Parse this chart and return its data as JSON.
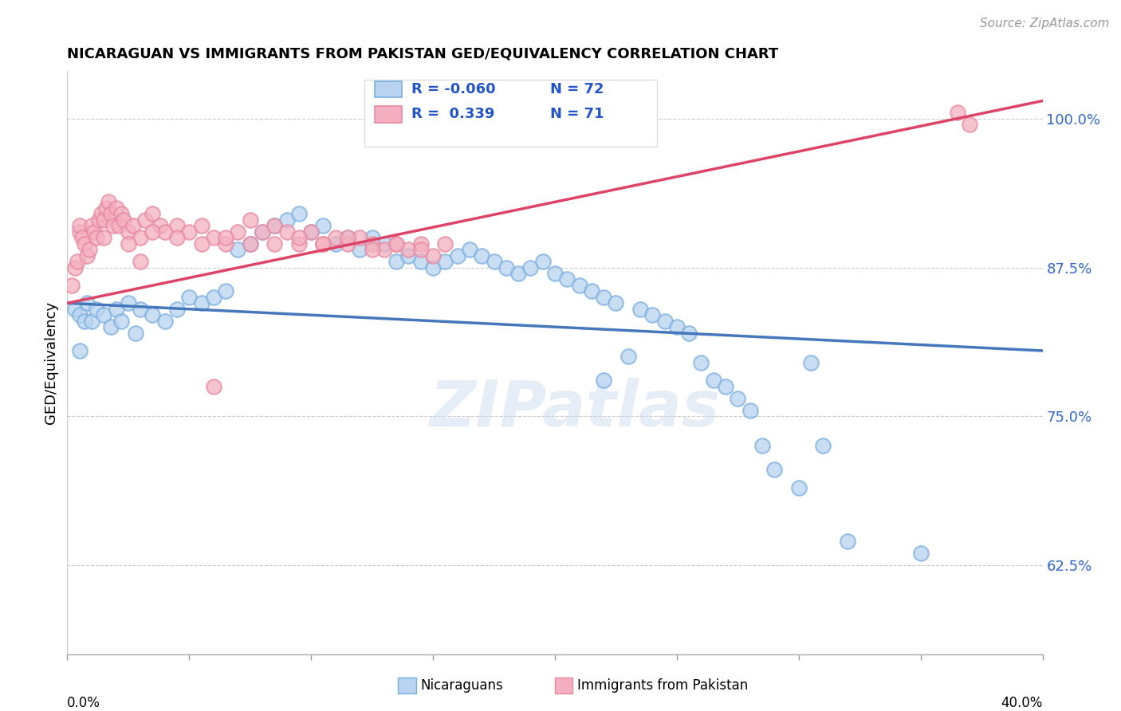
{
  "title": "NICARAGUAN VS IMMIGRANTS FROM PAKISTAN GED/EQUIVALENCY CORRELATION CHART",
  "source": "Source: ZipAtlas.com",
  "ylabel": "GED/Equivalency",
  "yticks": [
    62.5,
    75.0,
    87.5,
    100.0
  ],
  "ytick_labels": [
    "62.5%",
    "75.0%",
    "87.5%",
    "100.0%"
  ],
  "xmin": 0.0,
  "xmax": 40.0,
  "ymin": 55.0,
  "ymax": 104.0,
  "legend_r_blue": "-0.060",
  "legend_n_blue": "72",
  "legend_r_pink": "0.339",
  "legend_n_pink": "71",
  "blue_color_fill": "#b8d4f0",
  "blue_color_edge": "#7aaee0",
  "pink_color_fill": "#f4b0c0",
  "pink_color_edge": "#e888a0",
  "blue_line_color": "#4477bb",
  "pink_line_color": "#dd4466",
  "watermark": "ZIPatlas",
  "blue_line_y0": 84.5,
  "blue_line_y1": 80.5,
  "pink_line_y0": 84.5,
  "pink_line_y1": 101.5,
  "blue_scatter_x": [
    0.3,
    0.5,
    0.5,
    0.7,
    0.8,
    1.0,
    1.2,
    1.5,
    1.8,
    2.0,
    2.2,
    2.5,
    2.8,
    3.0,
    3.5,
    4.0,
    4.5,
    5.0,
    5.5,
    6.0,
    6.5,
    7.0,
    7.5,
    8.0,
    8.5,
    9.0,
    9.5,
    10.0,
    10.5,
    11.0,
    11.5,
    12.0,
    12.5,
    13.0,
    13.5,
    14.0,
    14.5,
    15.0,
    15.5,
    16.0,
    16.5,
    17.0,
    17.5,
    18.0,
    18.5,
    19.0,
    19.5,
    20.0,
    20.5,
    21.0,
    21.5,
    22.0,
    22.5,
    23.0,
    23.5,
    24.0,
    24.5,
    25.0,
    25.5,
    26.0,
    26.5,
    27.0,
    27.5,
    28.0,
    28.5,
    29.0,
    30.0,
    31.0,
    32.0,
    35.0,
    22.0,
    30.5
  ],
  "blue_scatter_y": [
    84.0,
    83.5,
    80.5,
    83.0,
    84.5,
    83.0,
    84.0,
    83.5,
    82.5,
    84.0,
    83.0,
    84.5,
    82.0,
    84.0,
    83.5,
    83.0,
    84.0,
    85.0,
    84.5,
    85.0,
    85.5,
    89.0,
    89.5,
    90.5,
    91.0,
    91.5,
    92.0,
    90.5,
    91.0,
    89.5,
    90.0,
    89.0,
    90.0,
    89.5,
    88.0,
    88.5,
    88.0,
    87.5,
    88.0,
    88.5,
    89.0,
    88.5,
    88.0,
    87.5,
    87.0,
    87.5,
    88.0,
    87.0,
    86.5,
    86.0,
    85.5,
    85.0,
    84.5,
    80.0,
    84.0,
    83.5,
    83.0,
    82.5,
    82.0,
    79.5,
    78.0,
    77.5,
    76.5,
    75.5,
    72.5,
    70.5,
    69.0,
    72.5,
    64.5,
    63.5,
    78.0,
    79.5
  ],
  "pink_scatter_x": [
    0.2,
    0.3,
    0.4,
    0.5,
    0.5,
    0.6,
    0.7,
    0.8,
    0.9,
    1.0,
    1.1,
    1.2,
    1.3,
    1.4,
    1.5,
    1.6,
    1.7,
    1.8,
    1.9,
    2.0,
    2.1,
    2.2,
    2.3,
    2.5,
    2.7,
    3.0,
    3.2,
    3.5,
    3.8,
    4.0,
    4.5,
    5.0,
    5.5,
    6.0,
    6.5,
    7.0,
    7.5,
    8.0,
    8.5,
    9.0,
    9.5,
    10.0,
    10.5,
    11.0,
    11.5,
    12.0,
    12.5,
    13.0,
    13.5,
    14.0,
    14.5,
    15.0,
    1.5,
    2.5,
    3.5,
    4.5,
    5.5,
    6.5,
    7.5,
    8.5,
    9.5,
    10.5,
    11.5,
    12.5,
    13.5,
    14.5,
    15.5,
    3.0,
    6.0,
    36.5,
    37.0
  ],
  "pink_scatter_y": [
    86.0,
    87.5,
    88.0,
    90.5,
    91.0,
    90.0,
    89.5,
    88.5,
    89.0,
    91.0,
    90.5,
    90.0,
    91.5,
    92.0,
    91.5,
    92.5,
    93.0,
    92.0,
    91.0,
    92.5,
    91.0,
    92.0,
    91.5,
    90.5,
    91.0,
    90.0,
    91.5,
    92.0,
    91.0,
    90.5,
    91.0,
    90.5,
    91.0,
    90.0,
    89.5,
    90.5,
    91.5,
    90.5,
    91.0,
    90.5,
    89.5,
    90.5,
    89.5,
    90.0,
    89.5,
    90.0,
    89.5,
    89.0,
    89.5,
    89.0,
    89.5,
    88.5,
    90.0,
    89.5,
    90.5,
    90.0,
    89.5,
    90.0,
    89.5,
    89.5,
    90.0,
    89.5,
    90.0,
    89.0,
    89.5,
    89.0,
    89.5,
    88.0,
    77.5,
    100.5,
    99.5
  ]
}
